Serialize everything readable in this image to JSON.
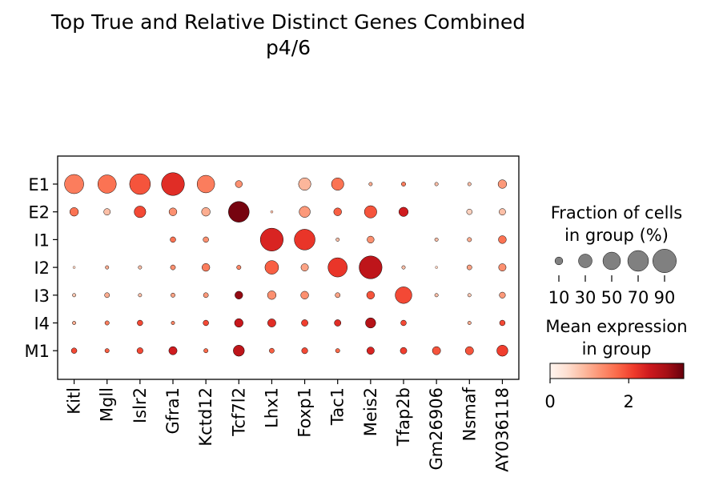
{
  "chart_data": {
    "type": "dotplot",
    "title": "Top True and Relative Distinct Genes Combined",
    "subtitle": "p4/6",
    "genes": [
      "Kitl",
      "Mgll",
      "Islr2",
      "Gfra1",
      "Kctd12",
      "Tcf7l2",
      "Lhx1",
      "Foxp1",
      "Tac1",
      "Meis2",
      "Tfap2b",
      "Gm26906",
      "Nsmaf",
      "AY036118"
    ],
    "groups": [
      "E1",
      "E2",
      "I1",
      "I2",
      "I3",
      "I4",
      "M1"
    ],
    "fraction_pct": [
      [
        60,
        55,
        70,
        85,
        50,
        8,
        0,
        25,
        25,
        2,
        3,
        2,
        2,
        12
      ],
      [
        12,
        7,
        22,
        10,
        12,
        70,
        1,
        20,
        10,
        25,
        14,
        0,
        5,
        7
      ],
      [
        0,
        0,
        0,
        5,
        5,
        0,
        85,
        70,
        2,
        8,
        0,
        2,
        3,
        10
      ],
      [
        1,
        2,
        2,
        4,
        10,
        3,
        30,
        9,
        60,
        85,
        2,
        1,
        4,
        9
      ],
      [
        2,
        4,
        2,
        3,
        4,
        10,
        12,
        10,
        4,
        10,
        45,
        2,
        2,
        6
      ],
      [
        2,
        3,
        5,
        2,
        5,
        12,
        11,
        7,
        7,
        17,
        5,
        0,
        2,
        5
      ],
      [
        5,
        3,
        6,
        11,
        3,
        20,
        4,
        6,
        3,
        9,
        7,
        11,
        11,
        20
      ]
    ],
    "mean_expression": [
      [
        1.5,
        1.6,
        1.9,
        2.3,
        1.5,
        1.3,
        0,
        0.9,
        1.6,
        1.0,
        1.5,
        0.8,
        0.8,
        1.2
      ],
      [
        1.6,
        0.8,
        2.0,
        1.3,
        1.0,
        3.3,
        0.8,
        1.2,
        1.8,
        1.9,
        2.5,
        0,
        0.6,
        0.8
      ],
      [
        0,
        0,
        0,
        1.6,
        1.3,
        0,
        2.4,
        2.2,
        0.8,
        1.3,
        0,
        0.8,
        1.0,
        1.6
      ],
      [
        0.6,
        1.0,
        0.8,
        1.3,
        1.5,
        1.4,
        1.8,
        1.1,
        2.2,
        2.7,
        0.8,
        0.6,
        1.1,
        1.3
      ],
      [
        0.7,
        1.0,
        0.8,
        1.1,
        1.2,
        3.1,
        1.3,
        1.3,
        1.1,
        1.9,
        2.0,
        0.8,
        0.7,
        1.2
      ],
      [
        1.0,
        1.5,
        2.0,
        1.4,
        2.0,
        2.6,
        2.3,
        2.1,
        2.3,
        2.8,
        2.0,
        0,
        1.0,
        2.0
      ],
      [
        2.0,
        1.8,
        2.0,
        2.5,
        1.7,
        2.7,
        1.8,
        2.0,
        1.7,
        2.4,
        2.1,
        1.9,
        1.9,
        2.1
      ]
    ],
    "size_legend": {
      "title_line1": "Fraction of cells",
      "title_line2": "in group (%)",
      "values": [
        10,
        30,
        50,
        70,
        90
      ],
      "labels": [
        "10",
        "30",
        "50",
        "70",
        "90"
      ]
    },
    "color_legend": {
      "title_line1": "Mean expression",
      "title_line2": "in group",
      "range": [
        0,
        3.4
      ],
      "ticks": [
        0,
        2
      ],
      "tick_labels": [
        "0",
        "2"
      ],
      "colormap": "Reds",
      "stops": [
        "#fff5f0",
        "#fee0d2",
        "#fcbba1",
        "#fc9272",
        "#fb6a4a",
        "#ef3b2c",
        "#cb181d",
        "#a50f15",
        "#67000d"
      ]
    }
  }
}
